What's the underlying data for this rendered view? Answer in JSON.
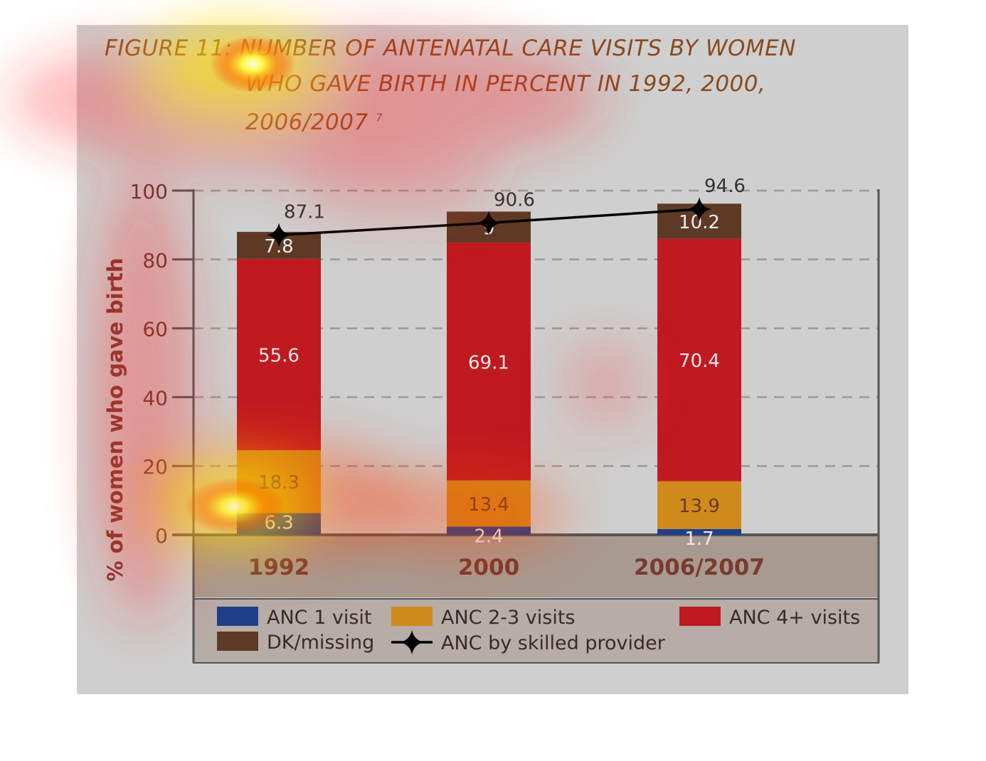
{
  "title": {
    "line1": "FIGURE 11: NUMBER OF ANTENATAL CARE VISITS  BY WOMEN",
    "line2": "WHO GAVE BIRTH IN PERCENT IN 1992, 2000,",
    "line3": "2006/2007 ",
    "footnote": "7"
  },
  "chart_data": {
    "type": "bar",
    "stacked": true,
    "categories": [
      "1992",
      "2000",
      "2006/2007"
    ],
    "ylabel": "% of women who gave birth",
    "ylim": [
      0,
      100
    ],
    "yticks": [
      0,
      20,
      40,
      60,
      80,
      100
    ],
    "grid": true,
    "series": [
      {
        "name": "ANC 1 visit",
        "values": [
          6.3,
          2.4,
          1.7
        ],
        "color": "#1f3f8a"
      },
      {
        "name": "ANC 2-3 visits",
        "values": [
          18.3,
          13.4,
          13.9
        ],
        "color": "#d08a1c"
      },
      {
        "name": "ANC 4+ visits",
        "values": [
          55.6,
          69.1,
          70.4
        ],
        "color": "#bf1a20"
      },
      {
        "name": "DK/missing",
        "values": [
          7.8,
          9,
          10.2
        ],
        "color": "#5e3a26"
      }
    ],
    "line_series": {
      "name": "ANC by skilled provider",
      "values": [
        87.1,
        90.6,
        94.6
      ],
      "labels": [
        "87.1",
        "90.6",
        "94.6"
      ],
      "color": "#000000"
    },
    "segment_labels": [
      [
        "6.3",
        "18.3",
        "55.6",
        "7.8"
      ],
      [
        "2.4",
        "13.4",
        "69.1",
        "9"
      ],
      [
        "1.7",
        "13.9",
        "70.4",
        "10.2"
      ]
    ],
    "legend_placement": "bottom"
  }
}
